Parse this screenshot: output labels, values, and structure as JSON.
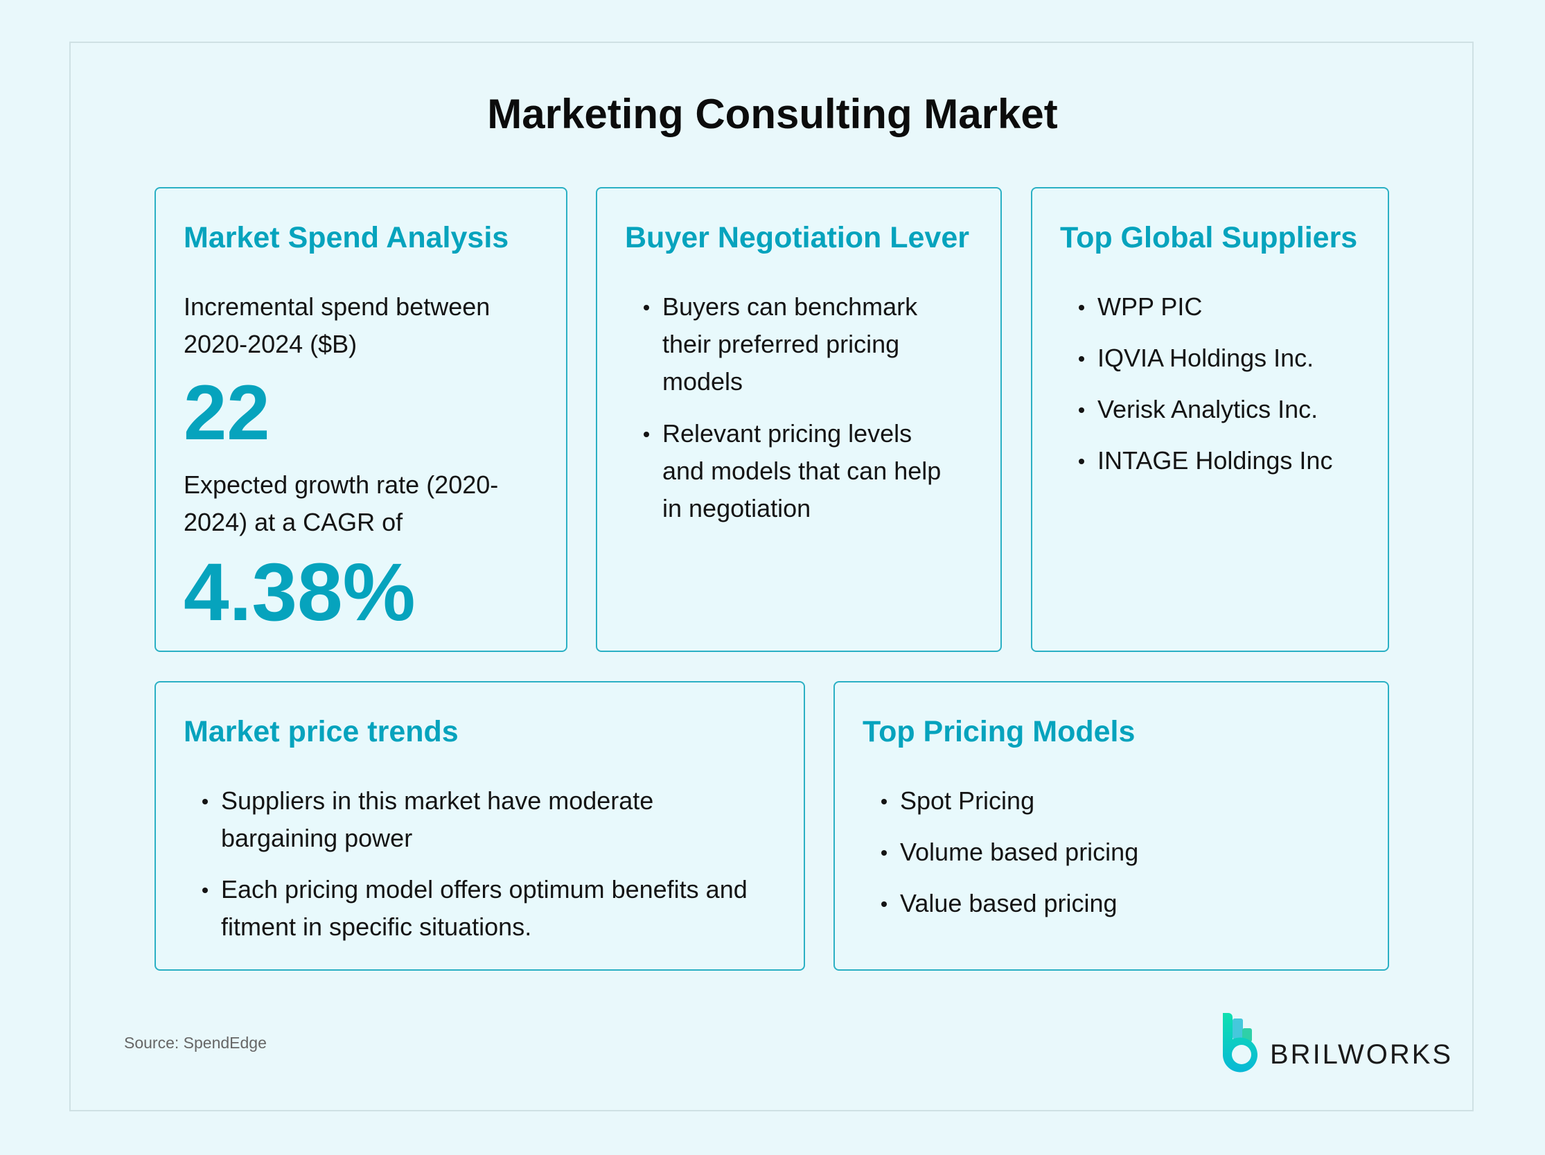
{
  "title": "Marketing Consulting Market",
  "market_spend": {
    "heading": "Market Spend Analysis",
    "incremental_label": "Incremental spend between 2020-2024 ($B)",
    "incremental_value": "22",
    "growth_label": "Expected growth rate (2020-2024) at a CAGR of",
    "growth_value": "4.38%"
  },
  "buyer_negotiation": {
    "heading": "Buyer Negotiation Lever",
    "items": [
      "Buyers can benchmark their preferred pricing models",
      "Relevant pricing levels and models that can help in negotiation"
    ]
  },
  "top_suppliers": {
    "heading": "Top Global Suppliers",
    "items": [
      "WPP PIC",
      "IQVIA Holdings Inc.",
      "Verisk Analytics Inc.",
      "INTAGE Holdings Inc"
    ]
  },
  "price_trends": {
    "heading": "Market price trends",
    "items": [
      "Suppliers in this market have moderate bargaining power",
      "Each pricing model offers optimum benefits and fitment in specific situations."
    ]
  },
  "pricing_models": {
    "heading": "Top Pricing Models",
    "items": [
      "Spot Pricing",
      "Volume based pricing",
      "Value based pricing"
    ]
  },
  "source": "Source: SpendEdge",
  "logo": {
    "text": "BRILWORKS",
    "icon": "brilworks-b-logo-icon"
  },
  "colors": {
    "accent": "#06a3bd",
    "background": "#e9f8fb",
    "card_border": "#2bb0c4"
  }
}
